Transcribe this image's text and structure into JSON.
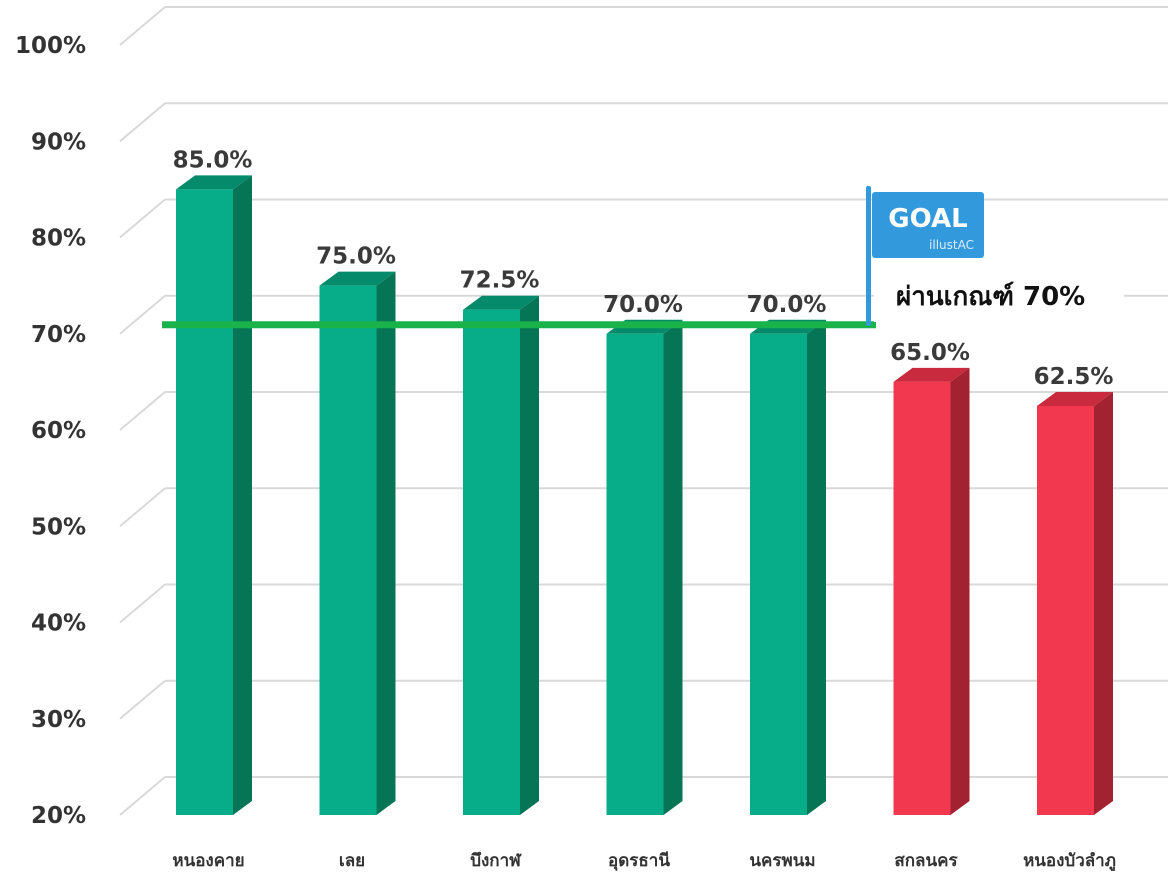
{
  "chart_data": {
    "type": "bar",
    "categories": [
      "หนองคาย",
      "เลย",
      "บึงกาฬ",
      "อุดรธานี",
      "นครพนม",
      "สกลนคร",
      "หนองบัวลำภู"
    ],
    "values": [
      85.0,
      75.0,
      72.5,
      70.0,
      70.0,
      65.0,
      62.5
    ],
    "data_labels": [
      "85.0%",
      "75.0%",
      "72.5%",
      "70.0%",
      "70.0%",
      "65.0%",
      "62.5%"
    ],
    "ylim": [
      20,
      100
    ],
    "yticks": [
      "20%",
      "30%",
      "40%",
      "50%",
      "60%",
      "70%",
      "80%",
      "90%",
      "100%"
    ],
    "threshold": 70,
    "threshold_label": "ผ่านเกณฑ์ 70%",
    "grid": true,
    "colors": {
      "pass_front": "#06ad88",
      "pass_side": "#067556",
      "pass_top": "#058a6b",
      "fail_front": "#f2384f",
      "fail_side": "#a32231",
      "fail_top": "#c92a3e",
      "threshold_line": "#19b24b",
      "grid": "#d9d9d9"
    }
  },
  "goal_flag": {
    "text": "GOAL",
    "watermark": "illustAC",
    "icon": "goal-flag-icon"
  }
}
